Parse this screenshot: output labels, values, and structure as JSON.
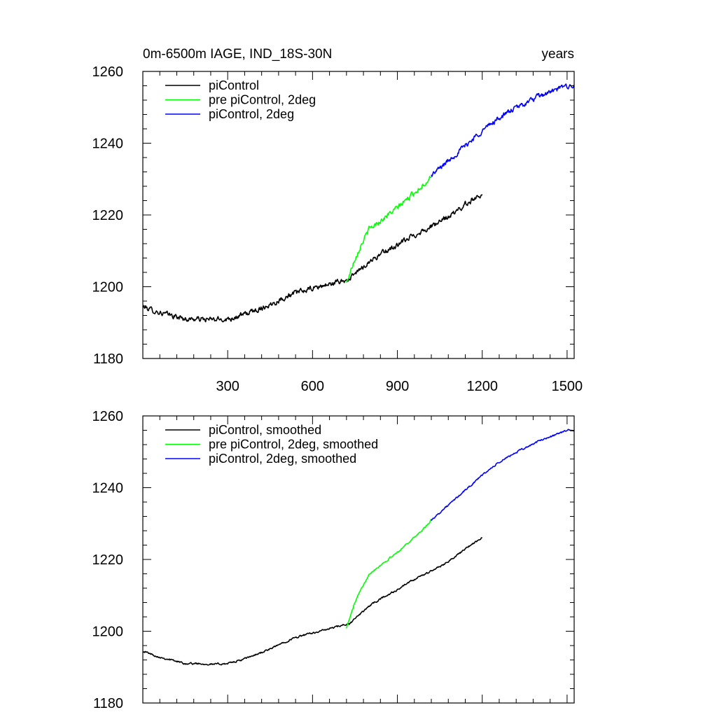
{
  "figure": {
    "title_left": "0m-6500m IAGE, IND_18S-30N",
    "title_right": "years"
  },
  "colors": {
    "piControl": "#000000",
    "pre_piControl_2deg": "#00ff00",
    "piControl_2deg": "#0000ff",
    "axis": "#000000",
    "background": "#ffffff"
  },
  "chart_data": [
    {
      "type": "line",
      "title": "0m-6500m IAGE, IND_18S-30N",
      "xlabel": "years",
      "ylabel": "",
      "xlim": [
        0,
        1525
      ],
      "ylim": [
        1180,
        1260
      ],
      "xticks": [
        300,
        600,
        900,
        1200,
        1500
      ],
      "xtick_labels": [
        "300",
        "600",
        "900",
        "1200",
        "1500"
      ],
      "yticks": [
        1180,
        1200,
        1220,
        1240,
        1260
      ],
      "ytick_labels": [
        "1180",
        "1200",
        "1220",
        "1240",
        "1260"
      ],
      "grid": false,
      "legend": "top-left",
      "noise": 1.3,
      "series": [
        {
          "name": "piControl",
          "color_key": "piControl",
          "points": [
            [
              0,
              1194.5
            ],
            [
              50,
              1193
            ],
            [
              100,
              1192
            ],
            [
              150,
              1191
            ],
            [
              200,
              1191
            ],
            [
              250,
              1190.8
            ],
            [
              300,
              1191
            ],
            [
              350,
              1192
            ],
            [
              400,
              1193.5
            ],
            [
              450,
              1195
            ],
            [
              500,
              1197
            ],
            [
              550,
              1198.5
            ],
            [
              600,
              1199.5
            ],
            [
              650,
              1200.5
            ],
            [
              700,
              1201.5
            ],
            [
              730,
              1202
            ],
            [
              750,
              1203.5
            ],
            [
              800,
              1207
            ],
            [
              850,
              1209.5
            ],
            [
              900,
              1211.5
            ],
            [
              950,
              1214
            ],
            [
              1000,
              1216
            ],
            [
              1050,
              1218
            ],
            [
              1100,
              1220.5
            ],
            [
              1150,
              1223.5
            ],
            [
              1200,
              1226
            ]
          ]
        },
        {
          "name": "pre piControl, 2deg",
          "color_key": "pre_piControl_2deg",
          "points": [
            [
              720,
              1201
            ],
            [
              750,
              1208
            ],
            [
              780,
              1213
            ],
            [
              800,
              1216
            ],
            [
              850,
              1219
            ],
            [
              900,
              1222
            ],
            [
              950,
              1225.5
            ],
            [
              1000,
              1229
            ],
            [
              1020,
              1231
            ]
          ]
        },
        {
          "name": "piControl, 2deg",
          "color_key": "piControl_2deg",
          "points": [
            [
              1020,
              1231
            ],
            [
              1100,
              1236.5
            ],
            [
              1150,
              1240
            ],
            [
              1200,
              1243.5
            ],
            [
              1250,
              1246.5
            ],
            [
              1300,
              1249
            ],
            [
              1350,
              1251
            ],
            [
              1400,
              1253
            ],
            [
              1450,
              1254.5
            ],
            [
              1500,
              1256
            ],
            [
              1525,
              1256
            ]
          ]
        }
      ]
    },
    {
      "type": "line",
      "title": "",
      "xlabel": "",
      "ylabel": "",
      "xlim": [
        0,
        1525
      ],
      "ylim": [
        1180,
        1260
      ],
      "xticks": [
        300,
        600,
        900,
        1200,
        1500
      ],
      "xtick_labels": [],
      "yticks": [
        1180,
        1200,
        1220,
        1240,
        1260
      ],
      "ytick_labels": [
        "1180",
        "1200",
        "1220",
        "1240",
        "1260"
      ],
      "grid": false,
      "legend": "top-left",
      "noise": 0.45,
      "series": [
        {
          "name": "piControl, smoothed",
          "color_key": "piControl",
          "points": [
            [
              0,
              1194.5
            ],
            [
              50,
              1193
            ],
            [
              100,
              1192
            ],
            [
              150,
              1191
            ],
            [
              200,
              1191
            ],
            [
              250,
              1190.8
            ],
            [
              300,
              1191
            ],
            [
              350,
              1192
            ],
            [
              400,
              1193.5
            ],
            [
              450,
              1195
            ],
            [
              500,
              1197
            ],
            [
              550,
              1198.5
            ],
            [
              600,
              1199.5
            ],
            [
              650,
              1200.5
            ],
            [
              700,
              1201.5
            ],
            [
              730,
              1202
            ],
            [
              750,
              1203.5
            ],
            [
              800,
              1207
            ],
            [
              850,
              1209.5
            ],
            [
              900,
              1211.5
            ],
            [
              950,
              1214
            ],
            [
              1000,
              1216
            ],
            [
              1050,
              1218
            ],
            [
              1100,
              1220.5
            ],
            [
              1150,
              1223.5
            ],
            [
              1200,
              1226
            ]
          ]
        },
        {
          "name": "pre piControl, 2deg, smoothed",
          "color_key": "pre_piControl_2deg",
          "points": [
            [
              720,
              1201
            ],
            [
              750,
              1208
            ],
            [
              780,
              1213
            ],
            [
              800,
              1216
            ],
            [
              850,
              1219
            ],
            [
              900,
              1222
            ],
            [
              950,
              1225.5
            ],
            [
              1000,
              1229
            ],
            [
              1020,
              1231
            ]
          ]
        },
        {
          "name": "piControl, 2deg, smoothed",
          "color_key": "piControl_2deg",
          "points": [
            [
              1020,
              1231
            ],
            [
              1100,
              1236.5
            ],
            [
              1150,
              1240
            ],
            [
              1200,
              1243.5
            ],
            [
              1250,
              1246.5
            ],
            [
              1300,
              1249
            ],
            [
              1350,
              1251
            ],
            [
              1400,
              1253
            ],
            [
              1450,
              1254.5
            ],
            [
              1500,
              1256
            ],
            [
              1525,
              1256
            ]
          ]
        }
      ]
    }
  ]
}
